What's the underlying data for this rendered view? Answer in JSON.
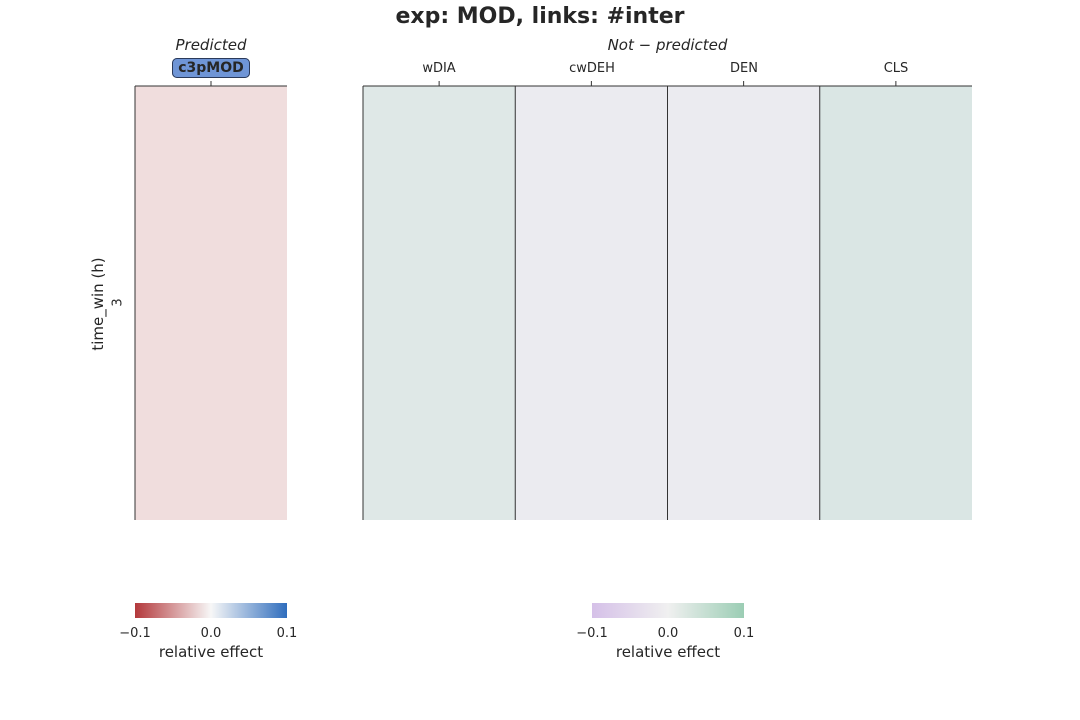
{
  "title": "exp: MOD, links: #inter",
  "chart_data": [
    {
      "type": "heatmap",
      "panel_title": "Predicted",
      "ylabel": "time_win (h)",
      "y_categories": [
        "3"
      ],
      "x_categories": [
        "c3pMOD"
      ],
      "values": [
        [
          -0.01
        ]
      ],
      "colormap": [
        "#b3383b",
        "#f7f7f7",
        "#2f6dbd"
      ],
      "cell_colors": [
        "#f0dddd"
      ],
      "colorbar": {
        "label": "relative effect",
        "ticks": [
          "−0.1",
          "0.0",
          "0.1"
        ],
        "vmin": -0.1,
        "vmax": 0.1
      }
    },
    {
      "type": "heatmap",
      "panel_title": "Not − predicted",
      "y_categories": [
        "3"
      ],
      "x_categories": [
        "wDIA",
        "cwDEH",
        "DEN",
        "CLS"
      ],
      "values": [
        [
          0.01,
          0.0,
          0.0,
          0.015
        ]
      ],
      "colormap": [
        "#d5c0e8",
        "#f0f0f0",
        "#9bcdb4"
      ],
      "cell_colors": [
        "#dfe8e7",
        "#ebebf0",
        "#ebebf0",
        "#dae6e4"
      ],
      "colorbar": {
        "label": "relative effect",
        "ticks": [
          "−0.1",
          "0.0",
          "0.1"
        ],
        "vmin": -0.1,
        "vmax": 0.1
      }
    }
  ]
}
